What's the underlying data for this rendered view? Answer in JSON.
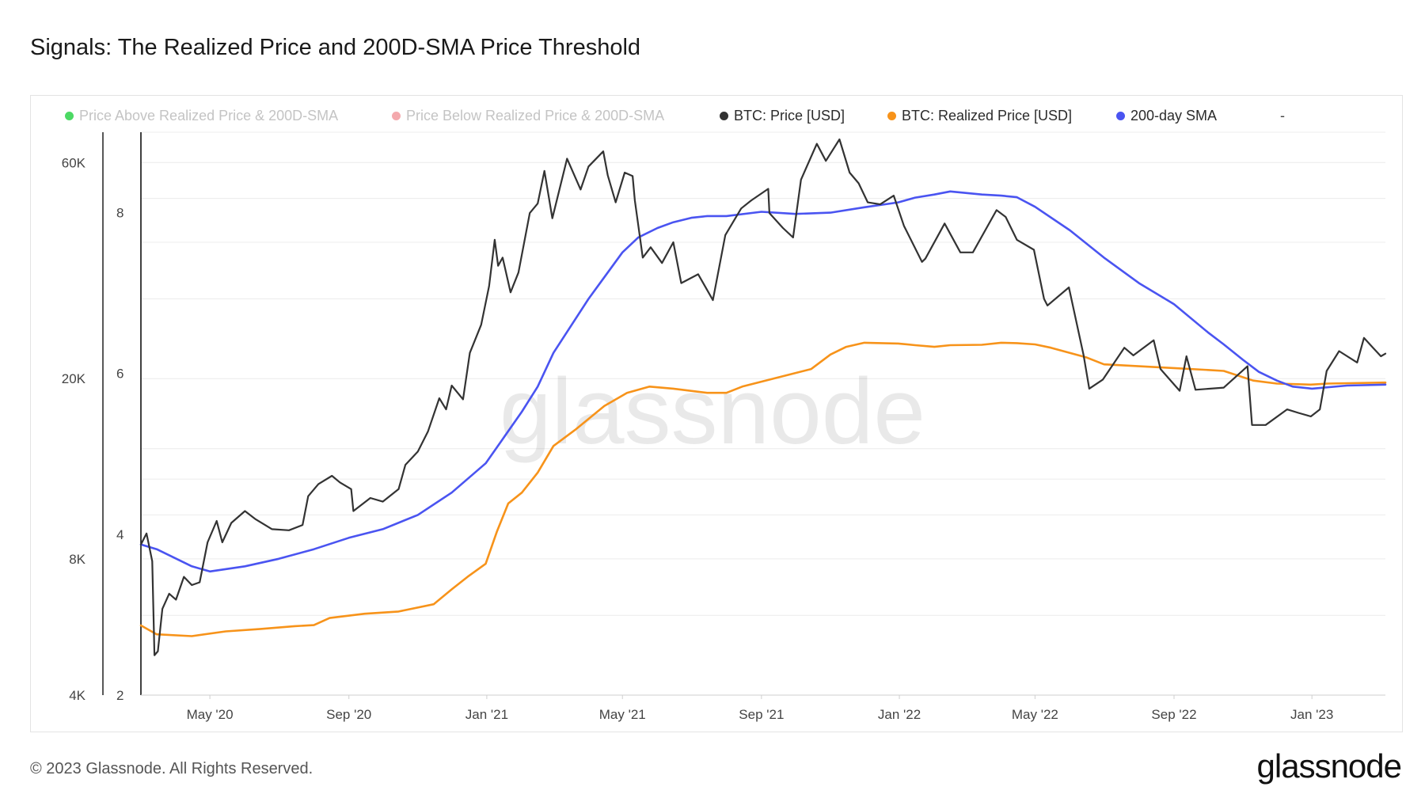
{
  "title": "Signals: The Realized Price and 200D-SMA Price Threshold",
  "footer": "© 2023 Glassnode. All Rights Reserved.",
  "logo": "glassnode",
  "watermark": "glassnode",
  "legend": [
    {
      "label": "Price Above Realized Price & 200D-SMA",
      "color": "#4cd964",
      "faded": true
    },
    {
      "label": "Price Below Realized Price & 200D-SMA",
      "color": "#f4a9ad",
      "faded": true
    },
    {
      "label": "BTC: Price [USD]",
      "color": "#333333",
      "faded": false
    },
    {
      "label": "BTC: Realized Price [USD]",
      "color": "#f7931a",
      "faded": false
    },
    {
      "label": "200-day SMA",
      "color": "#4a54f1",
      "faded": false
    }
  ],
  "legend_extra": "-",
  "chart_data": {
    "type": "line",
    "x_ticks": [
      "May '20",
      "Sep '20",
      "Jan '21",
      "May '21",
      "Sep '21",
      "Jan '22",
      "May '22",
      "Sep '22",
      "Jan '23"
    ],
    "x_range": [
      "2020-03-01",
      "2023-03-07"
    ],
    "y_left": {
      "scale": "log",
      "ticks": [
        4000,
        8000,
        20000,
        60000
      ],
      "tick_labels": [
        "4K",
        "8K",
        "20K",
        "60K"
      ],
      "range": [
        4000,
        70000
      ]
    },
    "y_right": {
      "ticks": [
        2,
        4,
        6,
        8
      ],
      "tick_labels": [
        "2",
        "4",
        "6",
        "8"
      ],
      "range": [
        2,
        9
      ]
    },
    "grid": true,
    "legend_position": "top",
    "series": [
      {
        "name": "BTC: Price [USD]",
        "color": "#333333",
        "points": [
          [
            "2020-03-01",
            8600
          ],
          [
            "2020-03-06",
            9100
          ],
          [
            "2020-03-11",
            7900
          ],
          [
            "2020-03-13",
            4900
          ],
          [
            "2020-03-16",
            5000
          ],
          [
            "2020-03-20",
            6200
          ],
          [
            "2020-03-26",
            6700
          ],
          [
            "2020-04-01",
            6500
          ],
          [
            "2020-04-08",
            7300
          ],
          [
            "2020-04-15",
            7000
          ],
          [
            "2020-04-22",
            7100
          ],
          [
            "2020-04-29",
            8700
          ],
          [
            "2020-05-07",
            9700
          ],
          [
            "2020-05-12",
            8700
          ],
          [
            "2020-05-20",
            9600
          ],
          [
            "2020-06-01",
            10200
          ],
          [
            "2020-06-10",
            9800
          ],
          [
            "2020-06-25",
            9300
          ],
          [
            "2020-07-10",
            9250
          ],
          [
            "2020-07-22",
            9500
          ],
          [
            "2020-07-27",
            11000
          ],
          [
            "2020-08-05",
            11700
          ],
          [
            "2020-08-17",
            12200
          ],
          [
            "2020-08-24",
            11800
          ],
          [
            "2020-09-03",
            11400
          ],
          [
            "2020-09-05",
            10200
          ],
          [
            "2020-09-20",
            10900
          ],
          [
            "2020-10-01",
            10700
          ],
          [
            "2020-10-15",
            11400
          ],
          [
            "2020-10-21",
            12900
          ],
          [
            "2020-11-01",
            13800
          ],
          [
            "2020-11-10",
            15300
          ],
          [
            "2020-11-20",
            18100
          ],
          [
            "2020-11-26",
            17100
          ],
          [
            "2020-12-01",
            19300
          ],
          [
            "2020-12-11",
            18000
          ],
          [
            "2020-12-17",
            22800
          ],
          [
            "2020-12-27",
            26300
          ],
          [
            "2021-01-03",
            32000
          ],
          [
            "2021-01-08",
            40500
          ],
          [
            "2021-01-11",
            35500
          ],
          [
            "2021-01-15",
            37000
          ],
          [
            "2021-01-22",
            31000
          ],
          [
            "2021-01-29",
            34300
          ],
          [
            "2021-02-08",
            46400
          ],
          [
            "2021-02-15",
            48700
          ],
          [
            "2021-02-21",
            57500
          ],
          [
            "2021-02-28",
            45200
          ],
          [
            "2021-03-13",
            61200
          ],
          [
            "2021-03-25",
            52300
          ],
          [
            "2021-04-01",
            58800
          ],
          [
            "2021-04-14",
            63500
          ],
          [
            "2021-04-18",
            56200
          ],
          [
            "2021-04-25",
            49000
          ],
          [
            "2021-05-03",
            57000
          ],
          [
            "2021-05-10",
            56000
          ],
          [
            "2021-05-12",
            49500
          ],
          [
            "2021-05-19",
            37000
          ],
          [
            "2021-05-26",
            39000
          ],
          [
            "2021-06-05",
            36000
          ],
          [
            "2021-06-15",
            40000
          ],
          [
            "2021-06-22",
            32500
          ],
          [
            "2021-07-07",
            34000
          ],
          [
            "2021-07-20",
            29800
          ],
          [
            "2021-07-31",
            41500
          ],
          [
            "2021-08-14",
            47500
          ],
          [
            "2021-08-23",
            49500
          ],
          [
            "2021-09-07",
            52500
          ],
          [
            "2021-09-08",
            46400
          ],
          [
            "2021-09-20",
            43000
          ],
          [
            "2021-09-29",
            41000
          ],
          [
            "2021-10-06",
            55000
          ],
          [
            "2021-10-20",
            66000
          ],
          [
            "2021-10-28",
            60500
          ],
          [
            "2021-11-09",
            67500
          ],
          [
            "2021-11-18",
            57000
          ],
          [
            "2021-11-26",
            54000
          ],
          [
            "2021-12-04",
            49000
          ],
          [
            "2021-12-15",
            48500
          ],
          [
            "2021-12-27",
            50700
          ],
          [
            "2022-01-05",
            43500
          ],
          [
            "2022-01-21",
            36200
          ],
          [
            "2022-01-24",
            36800
          ],
          [
            "2022-02-10",
            44000
          ],
          [
            "2022-02-24",
            38000
          ],
          [
            "2022-03-07",
            38000
          ],
          [
            "2022-03-28",
            47100
          ],
          [
            "2022-04-05",
            45500
          ],
          [
            "2022-04-15",
            40500
          ],
          [
            "2022-04-30",
            38500
          ],
          [
            "2022-05-09",
            30000
          ],
          [
            "2022-05-12",
            29000
          ],
          [
            "2022-05-31",
            31800
          ],
          [
            "2022-06-13",
            22500
          ],
          [
            "2022-06-18",
            19000
          ],
          [
            "2022-06-30",
            19900
          ],
          [
            "2022-07-19",
            23400
          ],
          [
            "2022-07-27",
            22500
          ],
          [
            "2022-08-14",
            24300
          ],
          [
            "2022-08-20",
            21000
          ],
          [
            "2022-09-06",
            18800
          ],
          [
            "2022-09-12",
            22400
          ],
          [
            "2022-09-20",
            18900
          ],
          [
            "2022-10-15",
            19100
          ],
          [
            "2022-11-05",
            21300
          ],
          [
            "2022-11-09",
            15800
          ],
          [
            "2022-11-21",
            15800
          ],
          [
            "2022-12-10",
            17100
          ],
          [
            "2022-12-20",
            16800
          ],
          [
            "2022-12-31",
            16500
          ],
          [
            "2023-01-08",
            17100
          ],
          [
            "2023-01-14",
            20800
          ],
          [
            "2023-01-25",
            23000
          ],
          [
            "2023-02-10",
            21700
          ],
          [
            "2023-02-16",
            24600
          ],
          [
            "2023-02-24",
            23400
          ],
          [
            "2023-03-03",
            22400
          ],
          [
            "2023-03-07",
            22700
          ]
        ]
      },
      {
        "name": "BTC: Realized Price [USD]",
        "color": "#f7931a",
        "points": [
          [
            "2020-03-01",
            5700
          ],
          [
            "2020-03-15",
            5450
          ],
          [
            "2020-04-15",
            5400
          ],
          [
            "2020-05-15",
            5530
          ],
          [
            "2020-06-15",
            5600
          ],
          [
            "2020-07-15",
            5680
          ],
          [
            "2020-08-01",
            5710
          ],
          [
            "2020-08-15",
            5920
          ],
          [
            "2020-09-15",
            6050
          ],
          [
            "2020-10-15",
            6120
          ],
          [
            "2020-11-15",
            6350
          ],
          [
            "2020-12-01",
            6850
          ],
          [
            "2020-12-15",
            7300
          ],
          [
            "2020-12-31",
            7800
          ],
          [
            "2021-01-10",
            9200
          ],
          [
            "2021-01-20",
            10600
          ],
          [
            "2021-02-01",
            11200
          ],
          [
            "2021-02-15",
            12400
          ],
          [
            "2021-03-01",
            14200
          ],
          [
            "2021-03-20",
            15400
          ],
          [
            "2021-04-15",
            17400
          ],
          [
            "2021-05-05",
            18600
          ],
          [
            "2021-05-25",
            19200
          ],
          [
            "2021-06-15",
            19000
          ],
          [
            "2021-07-15",
            18600
          ],
          [
            "2021-08-01",
            18600
          ],
          [
            "2021-08-15",
            19200
          ],
          [
            "2021-09-15",
            20100
          ],
          [
            "2021-10-15",
            21000
          ],
          [
            "2021-11-01",
            22600
          ],
          [
            "2021-11-15",
            23500
          ],
          [
            "2021-12-01",
            24000
          ],
          [
            "2021-12-31",
            23900
          ],
          [
            "2022-01-15",
            23700
          ],
          [
            "2022-02-01",
            23500
          ],
          [
            "2022-02-15",
            23700
          ],
          [
            "2022-03-15",
            23750
          ],
          [
            "2022-04-01",
            24000
          ],
          [
            "2022-04-15",
            23950
          ],
          [
            "2022-05-01",
            23800
          ],
          [
            "2022-05-15",
            23400
          ],
          [
            "2022-06-15",
            22300
          ],
          [
            "2022-07-01",
            21500
          ],
          [
            "2022-08-01",
            21300
          ],
          [
            "2022-09-01",
            21100
          ],
          [
            "2022-10-01",
            20900
          ],
          [
            "2022-10-15",
            20800
          ],
          [
            "2022-11-10",
            19800
          ],
          [
            "2022-12-01",
            19500
          ],
          [
            "2022-12-31",
            19400
          ],
          [
            "2023-01-15",
            19500
          ],
          [
            "2023-03-07",
            19600
          ]
        ]
      },
      {
        "name": "200-day SMA",
        "color": "#4a54f1",
        "points": [
          [
            "2020-03-01",
            8600
          ],
          [
            "2020-03-15",
            8400
          ],
          [
            "2020-04-15",
            7700
          ],
          [
            "2020-05-01",
            7500
          ],
          [
            "2020-06-01",
            7700
          ],
          [
            "2020-07-01",
            8000
          ],
          [
            "2020-08-01",
            8400
          ],
          [
            "2020-09-01",
            8900
          ],
          [
            "2020-10-01",
            9300
          ],
          [
            "2020-11-01",
            10000
          ],
          [
            "2020-12-01",
            11200
          ],
          [
            "2020-12-31",
            13000
          ],
          [
            "2021-01-15",
            14700
          ],
          [
            "2021-02-01",
            16900
          ],
          [
            "2021-02-15",
            19200
          ],
          [
            "2021-03-01",
            22800
          ],
          [
            "2021-04-01",
            30000
          ],
          [
            "2021-05-01",
            38000
          ],
          [
            "2021-05-15",
            41000
          ],
          [
            "2021-06-01",
            43000
          ],
          [
            "2021-06-15",
            44300
          ],
          [
            "2021-07-01",
            45300
          ],
          [
            "2021-07-15",
            45700
          ],
          [
            "2021-08-01",
            45700
          ],
          [
            "2021-09-01",
            46700
          ],
          [
            "2021-10-01",
            46200
          ],
          [
            "2021-11-01",
            46500
          ],
          [
            "2021-12-01",
            47800
          ],
          [
            "2021-12-31",
            49000
          ],
          [
            "2022-01-15",
            50200
          ],
          [
            "2022-02-01",
            51000
          ],
          [
            "2022-02-15",
            51800
          ],
          [
            "2022-03-15",
            51000
          ],
          [
            "2022-04-01",
            50700
          ],
          [
            "2022-04-15",
            50300
          ],
          [
            "2022-05-01",
            47900
          ],
          [
            "2022-06-01",
            42500
          ],
          [
            "2022-07-01",
            37000
          ],
          [
            "2022-08-01",
            32500
          ],
          [
            "2022-09-01",
            29200
          ],
          [
            "2022-10-01",
            25300
          ],
          [
            "2022-10-15",
            23800
          ],
          [
            "2022-11-01",
            22000
          ],
          [
            "2022-11-15",
            20700
          ],
          [
            "2022-12-01",
            19800
          ],
          [
            "2022-12-15",
            19200
          ],
          [
            "2023-01-01",
            19000
          ],
          [
            "2023-02-01",
            19300
          ],
          [
            "2023-03-07",
            19400
          ]
        ]
      }
    ],
    "title": "Signals: The Realized Price and 200D-SMA Price Threshold"
  }
}
